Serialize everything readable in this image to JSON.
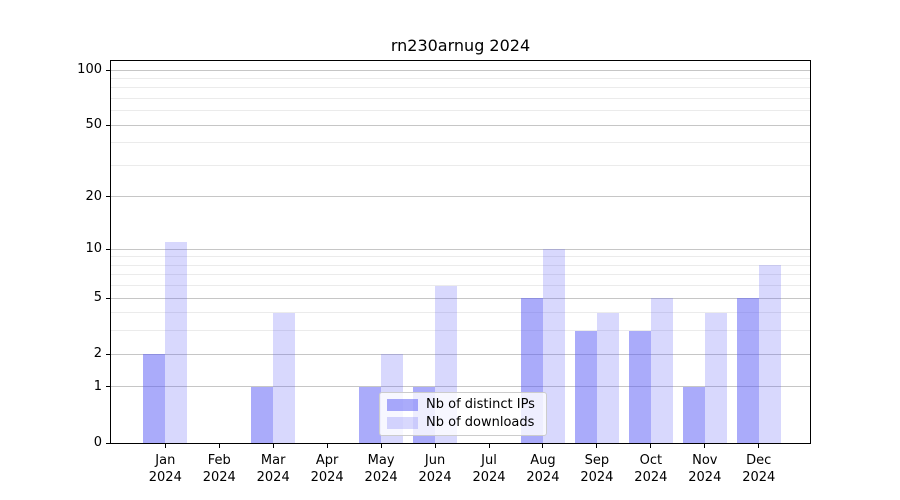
{
  "title": "rn230arnug 2024",
  "colors": {
    "bar_distinct_ips": "rgba(85,88,245,0.5)",
    "bar_downloads": "rgba(85,88,245,0.23)",
    "major_grid": "#c6c6c6",
    "minor_grid": "#ebebeb",
    "axis": "#000000",
    "legend_border": "#cccccc"
  },
  "chart_data": {
    "type": "bar",
    "title": "rn230arnug 2024",
    "categories": [
      "Jan",
      "Feb",
      "Mar",
      "Apr",
      "May",
      "Jun",
      "Jul",
      "Aug",
      "Sep",
      "Oct",
      "Nov",
      "Dec"
    ],
    "year_label": "2024",
    "series": [
      {
        "name": "Nb of distinct IPs",
        "color": "rgba(85,88,245,0.5)",
        "values": [
          2,
          0,
          1,
          0,
          1,
          1,
          0,
          5,
          3,
          3,
          1,
          5
        ]
      },
      {
        "name": "Nb of downloads",
        "color": "rgba(85,88,245,0.23)",
        "values": [
          11,
          0,
          4,
          0,
          2,
          6,
          0,
          10,
          4,
          5,
          4,
          8
        ]
      }
    ],
    "xlabel": "",
    "ylabel": "",
    "yscale": "log1p",
    "ylim": [
      0,
      100
    ],
    "yticks": [
      0,
      1,
      2,
      5,
      10,
      20,
      50,
      100
    ],
    "minor_yticks": [
      3,
      4,
      6,
      7,
      8,
      9,
      30,
      40,
      60,
      70,
      80,
      90
    ],
    "grid": true,
    "legend_position": "inside lower center"
  }
}
